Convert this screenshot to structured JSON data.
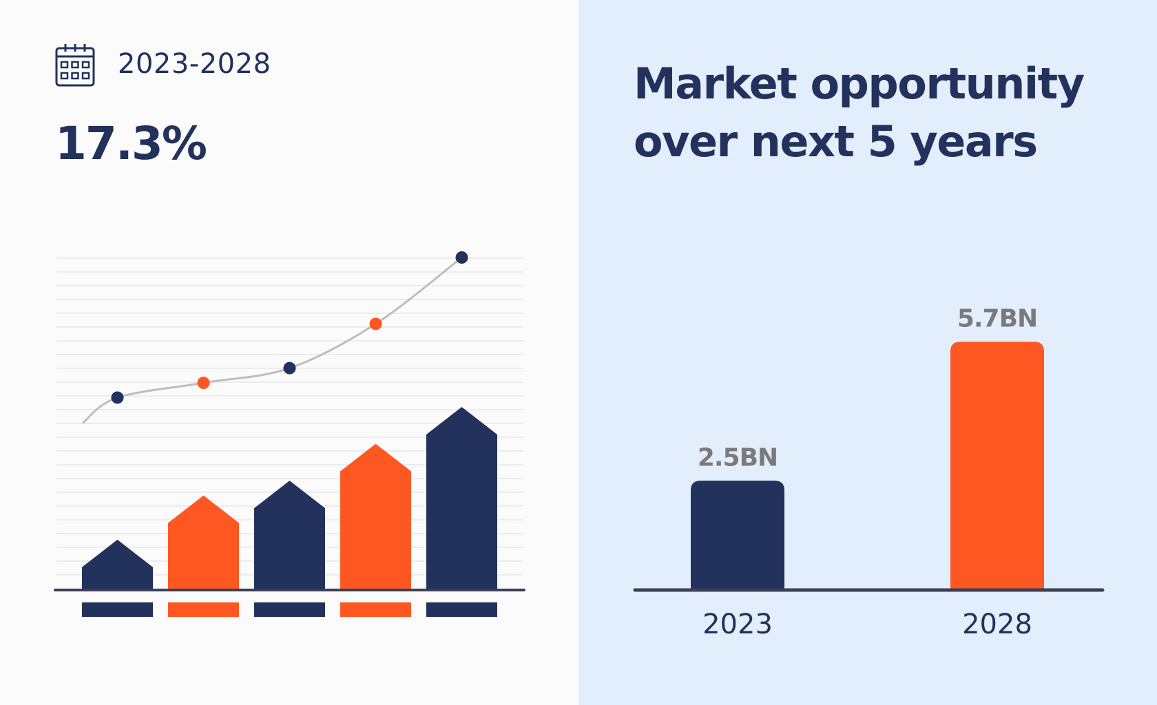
{
  "header": {
    "period": "2023-2028",
    "cagr": "17.3%",
    "title_line1": "Market opportunity",
    "title_line2": "over next 5 years",
    "icon": "calendar-icon"
  },
  "colors": {
    "navy": "#22325c",
    "orange": "#ff5722",
    "left_background": "#fbfbfb",
    "right_background": "#e3eefd"
  },
  "chart_data": [
    {
      "type": "bar",
      "title": "",
      "categories": [
        "",
        "",
        "",
        "",
        ""
      ],
      "values": [
        3,
        9,
        11,
        16,
        21
      ],
      "bar_colors": [
        "#22325c",
        "#ff5722",
        "#22325c",
        "#ff5722",
        "#22325c"
      ],
      "trend_line": [
        26,
        28,
        30,
        36,
        45
      ],
      "ylim": [
        0,
        45
      ],
      "grid": true,
      "arrow_shaped_bars": true
    },
    {
      "type": "bar",
      "title": "",
      "categories": [
        "2023",
        "2028"
      ],
      "values": [
        2.5,
        5.7
      ],
      "value_labels": [
        "2.5BN",
        "5.7BN"
      ],
      "bar_colors": [
        "#22325c",
        "#ff5722"
      ],
      "ylim": [
        0,
        6.5
      ],
      "grid": false
    }
  ]
}
